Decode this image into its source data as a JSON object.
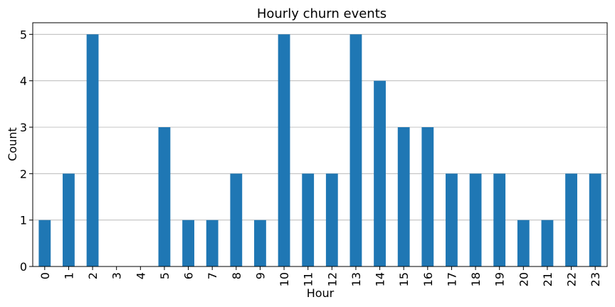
{
  "chart_data": {
    "type": "bar",
    "title": "Hourly churn events",
    "xlabel": "Hour",
    "ylabel": "Count",
    "categories": [
      "0",
      "1",
      "2",
      "3",
      "4",
      "5",
      "6",
      "7",
      "8",
      "9",
      "10",
      "11",
      "12",
      "13",
      "14",
      "15",
      "16",
      "17",
      "18",
      "19",
      "20",
      "21",
      "22",
      "23"
    ],
    "values": [
      1,
      2,
      5,
      0,
      0,
      3,
      1,
      1,
      2,
      1,
      5,
      2,
      2,
      5,
      4,
      3,
      3,
      2,
      2,
      2,
      1,
      1,
      2,
      2
    ],
    "ylim": [
      0,
      5.25
    ],
    "yticks": [
      0,
      1,
      2,
      3,
      4,
      5
    ],
    "grid": "y",
    "bar_color": "#1f77b4",
    "grid_color": "#b0b0b0",
    "xtick_rotation": "vertical"
  }
}
